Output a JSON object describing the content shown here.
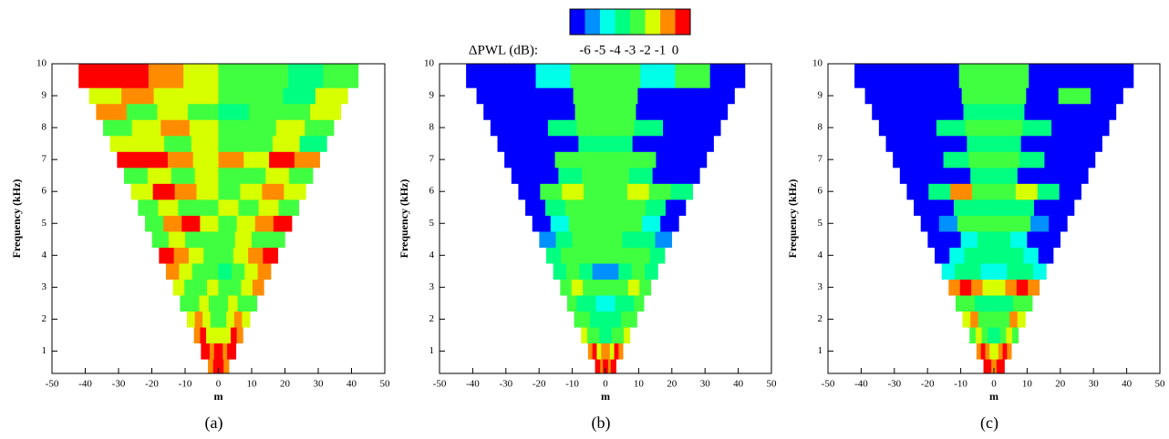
{
  "colorbar": {
    "label": "ΔPWL (dB):",
    "levels": [
      -6,
      -5,
      -4,
      -3,
      -2,
      -1,
      0
    ],
    "colors": [
      "#0000ff",
      "#0090ff",
      "#00ffe8",
      "#00ff80",
      "#40ff40",
      "#d8ff00",
      "#ff8c00",
      "#ff0000"
    ]
  },
  "chart_data": [
    {
      "type": "contour",
      "caption": "(a)",
      "xlabel": "m",
      "ylabel": "Frequency (kHz)",
      "xlim": [
        -50,
        50
      ],
      "xticks": [
        -50,
        -40,
        -30,
        -20,
        -10,
        0,
        10,
        20,
        30,
        40,
        50
      ],
      "ylim": [
        0.3,
        10
      ],
      "yticks": [
        1,
        2,
        3,
        4,
        5,
        6,
        7,
        8,
        9,
        10
      ],
      "y": [
        0.5,
        1,
        1.5,
        2,
        2.5,
        3,
        3.5,
        4,
        4.5,
        5,
        5.5,
        6,
        6.5,
        7,
        7.5,
        8,
        8.5,
        9,
        9.5
      ],
      "values": [
        [
          -1,
          -1,
          0,
          0,
          0,
          0,
          -1,
          -1
        ],
        [
          0,
          0,
          -1,
          0,
          0,
          -1,
          0,
          0
        ],
        [
          -1,
          0,
          -2,
          -2,
          -2,
          -2,
          0,
          -1
        ],
        [
          -2,
          -1,
          -2,
          -3,
          -3,
          -2,
          -1,
          -2
        ],
        [
          -3,
          -3,
          -2,
          -3,
          -3,
          -2,
          -3,
          -3
        ],
        [
          -2,
          -3,
          -3,
          -2,
          -3,
          -3,
          -2,
          -1
        ],
        [
          -1,
          -2,
          -3,
          -3,
          -4,
          -3,
          -2,
          -1
        ],
        [
          0,
          -1,
          -2,
          -3,
          -3,
          -2,
          -1,
          0
        ],
        [
          -3,
          -2,
          -3,
          -3,
          -3,
          -2,
          -3,
          -3
        ],
        [
          -3,
          -1,
          0,
          -2,
          -3,
          -2,
          -1,
          0
        ],
        [
          -3,
          -2,
          -3,
          -3,
          -2,
          -3,
          -2,
          -3
        ],
        [
          -2,
          0,
          -1,
          -2,
          -3,
          -2,
          -1,
          -2
        ],
        [
          -3,
          -2,
          -3,
          -2,
          -3,
          -3,
          -2,
          -3
        ],
        [
          0,
          0,
          -1,
          -2,
          -1,
          -2,
          0,
          -1
        ],
        [
          -2,
          -2,
          -3,
          -2,
          -3,
          -3,
          -2,
          -4
        ],
        [
          -3,
          -2,
          -1,
          -2,
          -3,
          -3,
          -2,
          -3
        ],
        [
          -1,
          -3,
          -2,
          -3,
          -4,
          -3,
          -3,
          -2
        ],
        [
          -2,
          -1,
          -2,
          -2,
          -3,
          -3,
          -4,
          -2
        ],
        [
          0,
          0,
          -1,
          -2,
          -3,
          -3,
          -4,
          -3
        ]
      ]
    },
    {
      "type": "contour",
      "caption": "(b)",
      "xlabel": "m",
      "ylabel": "Frequency (kHz)",
      "xlim": [
        -50,
        50
      ],
      "xticks": [
        -50,
        -40,
        -30,
        -20,
        -10,
        0,
        10,
        20,
        30,
        40,
        50
      ],
      "ylim": [
        0.3,
        10
      ],
      "yticks": [
        1,
        2,
        3,
        4,
        5,
        6,
        7,
        8,
        9,
        10
      ],
      "y": [
        0.5,
        1,
        1.5,
        2,
        2.5,
        3,
        3.5,
        4,
        4.5,
        5,
        5.5,
        6,
        6.5,
        7,
        7.5,
        8,
        8.5,
        9,
        9.5
      ],
      "values": [
        [
          0,
          0,
          -1,
          0,
          0,
          -1,
          0,
          0
        ],
        [
          -1,
          0,
          -2,
          -1,
          -1,
          -2,
          0,
          -1
        ],
        [
          -2,
          -3,
          -3,
          -4,
          -4,
          -3,
          -3,
          -2
        ],
        [
          -3,
          -3,
          -4,
          -4,
          -4,
          -4,
          -3,
          -3
        ],
        [
          -3,
          -4,
          -4,
          -5,
          -5,
          -4,
          -4,
          -3
        ],
        [
          -3,
          -2,
          -3,
          -3,
          -3,
          -3,
          -2,
          -3
        ],
        [
          -4,
          -3,
          -4,
          -6,
          -6,
          -4,
          -3,
          -4
        ],
        [
          -4,
          -3,
          -3,
          -3,
          -3,
          -3,
          -3,
          -4
        ],
        [
          -6,
          -4,
          -3,
          -3,
          -3,
          -4,
          -4,
          -6
        ],
        [
          -7,
          -5,
          -3,
          -3,
          -3,
          -3,
          -5,
          -7
        ],
        [
          -7,
          -4,
          -3,
          -3,
          -3,
          -3,
          -4,
          -7
        ],
        [
          -7,
          -3,
          -2,
          -3,
          -3,
          -2,
          -3,
          -4
        ],
        [
          -7,
          -7,
          -4,
          -3,
          -3,
          -4,
          -7,
          -7
        ],
        [
          -7,
          -7,
          -3,
          -3,
          -3,
          -3,
          -7,
          -7
        ],
        [
          -7,
          -7,
          -7,
          -4,
          -4,
          -7,
          -7,
          -7
        ],
        [
          -7,
          -7,
          -4,
          -3,
          -3,
          -4,
          -7,
          -7
        ],
        [
          -7,
          -7,
          -7,
          -3,
          -3,
          -7,
          -7,
          -7
        ],
        [
          -7,
          -7,
          -7,
          -3,
          -3,
          -7,
          -7,
          -7
        ],
        [
          -7,
          -7,
          -5,
          -3,
          -3,
          -5,
          -3,
          -7
        ]
      ]
    },
    {
      "type": "contour",
      "caption": "(c)",
      "xlabel": "m",
      "ylabel": "Frequency (kHz)",
      "xlim": [
        -50,
        50
      ],
      "xticks": [
        -50,
        -40,
        -30,
        -20,
        -10,
        0,
        10,
        20,
        30,
        40,
        50
      ],
      "ylim": [
        0.3,
        10
      ],
      "yticks": [
        1,
        2,
        3,
        4,
        5,
        6,
        7,
        8,
        9,
        10
      ],
      "y": [
        0.5,
        1,
        1.5,
        2,
        2.5,
        3,
        3.5,
        4,
        4.5,
        5,
        5.5,
        6,
        6.5,
        7,
        7.5,
        8,
        8.5,
        9,
        9.5
      ],
      "values": [
        [
          0,
          0,
          0,
          -1,
          -1,
          0,
          0,
          0
        ],
        [
          -1,
          0,
          -1,
          -2,
          -2,
          -1,
          0,
          -1
        ],
        [
          -3,
          -2,
          -3,
          -4,
          -4,
          -3,
          -2,
          -3
        ],
        [
          -2,
          -1,
          -3,
          -3,
          -3,
          -3,
          -1,
          -2
        ],
        [
          -3,
          -3,
          -4,
          -4,
          -4,
          -4,
          -3,
          -3
        ],
        [
          -1,
          0,
          -1,
          -2,
          -2,
          -1,
          0,
          -1
        ],
        [
          -5,
          -4,
          -4,
          -5,
          -5,
          -4,
          -4,
          -5
        ],
        [
          -7,
          -5,
          -4,
          -4,
          -4,
          -4,
          -5,
          -7
        ],
        [
          -7,
          -7,
          -5,
          -4,
          -4,
          -5,
          -7,
          -7
        ],
        [
          -7,
          -6,
          -3,
          -3,
          -3,
          -3,
          -6,
          -7
        ],
        [
          -7,
          -7,
          -4,
          -4,
          -4,
          -4,
          -7,
          -7
        ],
        [
          -7,
          -4,
          -1,
          -3,
          -3,
          -2,
          -4,
          -7
        ],
        [
          -7,
          -7,
          -7,
          -4,
          -4,
          -7,
          -7,
          -7
        ],
        [
          -7,
          -7,
          -4,
          -3,
          -3,
          -4,
          -7,
          -7
        ],
        [
          -7,
          -7,
          -7,
          -4,
          -4,
          -7,
          -7,
          -7
        ],
        [
          -7,
          -7,
          -4,
          -3,
          -3,
          -4,
          -7,
          -7
        ],
        [
          -7,
          -7,
          -7,
          -4,
          -4,
          -7,
          -7,
          -7
        ],
        [
          -7,
          -7,
          -7,
          -3,
          -3,
          -7,
          -3,
          -7
        ],
        [
          -7,
          -7,
          -7,
          -3,
          -3,
          -7,
          -7,
          -7
        ]
      ]
    }
  ]
}
